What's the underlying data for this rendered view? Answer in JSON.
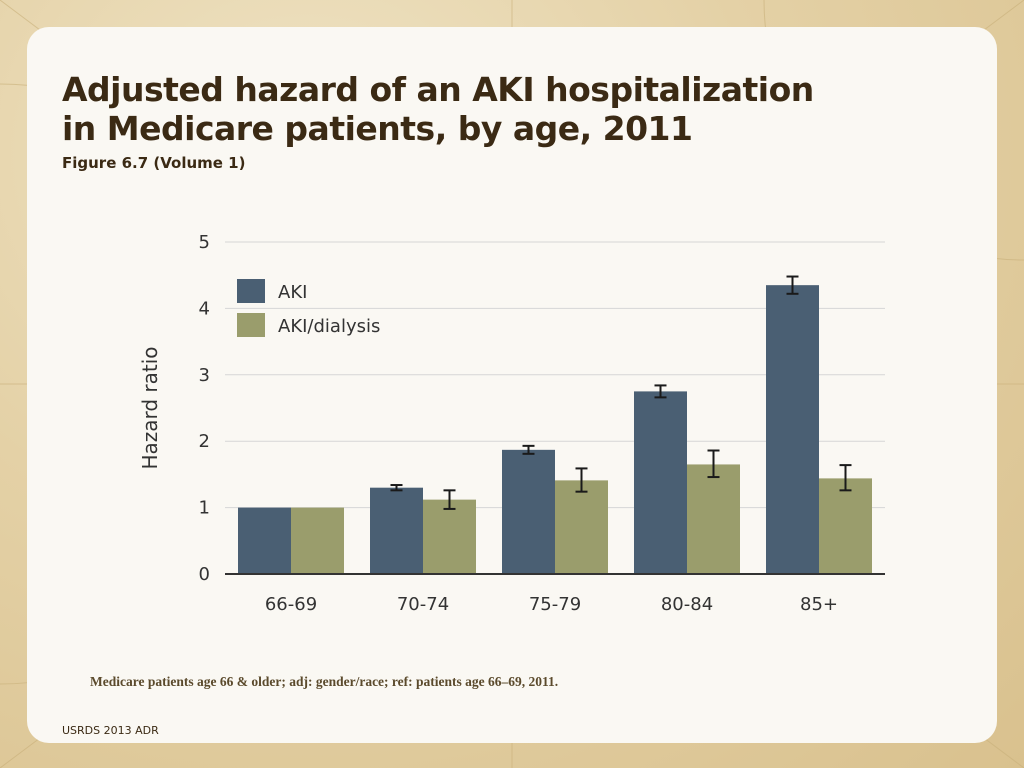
{
  "slide": {
    "title_line1": "Adjusted hazard of an AKI hospitalization",
    "title_line2": "in Medicare patients, by age, 2011",
    "subtitle": "Figure 6.7 (Volume 1)",
    "note": "Medicare patients age 66 & older; adj: gender/race; ref: patients age 66–69, 2011.",
    "footer": "USRDS 2013 ADR"
  },
  "colors": {
    "aki": "#4a5f73",
    "aki_dialysis": "#9a9d6c",
    "grid": "#d6d6d6",
    "axis": "#333333",
    "text": "#333333"
  },
  "chart_data": {
    "type": "bar",
    "title": "",
    "xlabel": "",
    "ylabel": "Hazard ratio",
    "ylim": [
      0,
      5
    ],
    "yticks": [
      "0",
      "1",
      "2",
      "3",
      "4",
      "5"
    ],
    "grid": true,
    "legend_position": "top-left",
    "categories": [
      "66-69",
      "70-74",
      "75-79",
      "80-84",
      "85+"
    ],
    "series": [
      {
        "name": "AKI",
        "values": [
          1.0,
          1.3,
          1.87,
          2.75,
          4.35
        ],
        "err_low": [
          1.0,
          1.26,
          1.81,
          2.66,
          4.22
        ],
        "err_high": [
          1.0,
          1.34,
          1.93,
          2.84,
          4.48
        ]
      },
      {
        "name": "AKI/dialysis",
        "values": [
          1.0,
          1.12,
          1.41,
          1.65,
          1.44
        ],
        "err_low": [
          1.0,
          0.98,
          1.24,
          1.46,
          1.26
        ],
        "err_high": [
          1.0,
          1.26,
          1.59,
          1.86,
          1.64
        ]
      }
    ]
  }
}
